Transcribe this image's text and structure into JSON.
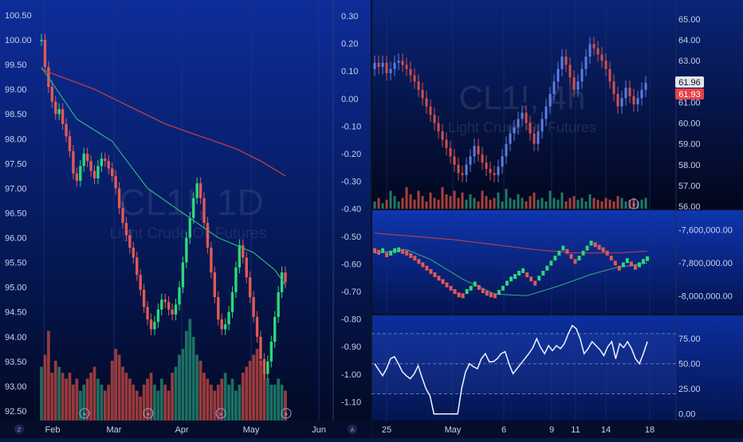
{
  "colors": {
    "up": "#2fd778",
    "down": "#e05a55",
    "ma_fast": "#2fb37a",
    "ma_slow": "#c8423e",
    "axis_text": "#c9d2ea",
    "price_badge_light": "#e3e6ee",
    "price_badge_red": "#e4424a",
    "bg_top": "#0b2a8a",
    "bg_bottom": "#000718"
  },
  "left_pane": {
    "watermark_symbol": "CL1!, 1D",
    "watermark_name": "Light Crude Oil Futures",
    "price_axis": [
      "100.50",
      "100.00",
      "99.50",
      "99.00",
      "98.50",
      "98.00",
      "97.50",
      "97.00",
      "96.50",
      "96.00",
      "95.50",
      "95.00",
      "94.50",
      "94.00",
      "93.50",
      "93.00",
      "92.50"
    ],
    "time_axis": [
      "Feb",
      "Mar",
      "Apr",
      "May",
      "Jun"
    ],
    "axis_corner_label": "Z"
  },
  "middle_axis": {
    "labels": [
      "0.30",
      "0.20",
      "0.10",
      "0.00",
      "-0.10",
      "-0.20",
      "-0.30",
      "-0.40",
      "-0.50",
      "-0.60",
      "-0.70",
      "-0.80",
      "-0.90",
      "-1.00",
      "-1.10"
    ],
    "corner_label": "A"
  },
  "right_top": {
    "watermark_symbol": "CL1!, 4h",
    "watermark_name": "Light Crude Oil Futures",
    "price_axis": [
      "65.00",
      "64.00",
      "63.00",
      "62.00",
      "61.00",
      "60.00",
      "59.00",
      "58.00",
      "57.00",
      "56.00"
    ],
    "badge_last": "61.96",
    "badge_current": "61.93"
  },
  "right_mid": {
    "price_axis": [
      "-7,600,000.00",
      "-7,800,000.00",
      "-8,000,000.00"
    ]
  },
  "right_bottom": {
    "price_axis": [
      "75.00",
      "50.00",
      "25.00",
      "0.00"
    ]
  },
  "right_time_axis": [
    "25",
    "May",
    "6",
    "9",
    "11",
    "14",
    "18"
  ],
  "chart_data": {
    "type": "candlestick",
    "symbol": "CL1!",
    "interval": "1D",
    "months": [
      "Feb",
      "Mar",
      "Apr",
      "May"
    ],
    "ylim": [
      92.4,
      100.6
    ],
    "close": [
      100.0,
      99.45,
      99.05,
      98.75,
      98.5,
      98.6,
      98.3,
      98.05,
      97.75,
      97.3,
      97.15,
      97.45,
      97.7,
      97.55,
      97.35,
      97.2,
      97.45,
      97.6,
      97.55,
      97.4,
      97.25,
      97.0,
      96.6,
      96.3,
      96.05,
      95.8,
      95.6,
      95.25,
      94.95,
      94.6,
      94.35,
      94.15,
      94.3,
      94.55,
      94.75,
      94.7,
      94.55,
      94.45,
      94.65,
      95.0,
      95.5,
      96.0,
      96.4,
      96.8,
      97.1,
      96.8,
      96.3,
      95.8,
      95.3,
      94.8,
      94.35,
      94.15,
      94.25,
      94.5,
      94.9,
      95.4,
      95.85,
      95.6,
      95.2,
      94.8,
      94.4,
      94.0,
      93.55,
      93.25,
      93.5,
      93.9,
      94.4,
      94.9,
      95.3,
      95.1
    ],
    "volume": [
      0.45,
      0.55,
      0.75,
      0.4,
      0.5,
      0.45,
      0.4,
      0.35,
      0.4,
      0.3,
      0.35,
      0.25,
      0.3,
      0.35,
      0.4,
      0.45,
      0.35,
      0.3,
      0.25,
      0.3,
      0.5,
      0.6,
      0.55,
      0.45,
      0.4,
      0.35,
      0.3,
      0.25,
      0.2,
      0.3,
      0.35,
      0.4,
      0.3,
      0.25,
      0.35,
      0.3,
      0.25,
      0.4,
      0.45,
      0.55,
      0.6,
      0.75,
      0.85,
      0.7,
      0.55,
      0.5,
      0.4,
      0.35,
      0.3,
      0.25,
      0.3,
      0.35,
      0.4,
      0.3,
      0.35,
      0.25,
      0.3,
      0.4,
      0.45,
      0.5,
      0.55,
      0.6,
      0.5,
      0.4,
      0.35,
      0.3,
      0.3,
      0.35,
      0.3,
      0.25
    ],
    "ma_fast": [
      [
        0,
        99.45
      ],
      [
        10,
        98.4
      ],
      [
        20,
        97.95
      ],
      [
        30,
        97.0
      ],
      [
        40,
        96.5
      ],
      [
        50,
        96.0
      ],
      [
        60,
        95.7
      ],
      [
        66,
        95.35
      ],
      [
        69,
        95.05
      ]
    ],
    "ma_slow": [
      [
        0,
        99.4
      ],
      [
        15,
        99.0
      ],
      [
        25,
        98.65
      ],
      [
        35,
        98.3
      ],
      [
        45,
        98.05
      ],
      [
        55,
        97.8
      ],
      [
        62,
        97.55
      ],
      [
        69,
        97.25
      ]
    ],
    "secondary": {
      "symbol": "CL1!",
      "interval": "4h",
      "ylim": [
        56.0,
        65.5
      ],
      "close": [
        62.9,
        62.7,
        62.9,
        62.4,
        62.6,
        62.9,
        63.0,
        62.8,
        62.6,
        62.3,
        62.0,
        61.6,
        61.2,
        60.8,
        60.4,
        60.0,
        59.6,
        59.2,
        58.8,
        58.4,
        58.0,
        57.6,
        57.5,
        58.0,
        58.4,
        58.9,
        58.5,
        58.1,
        57.8,
        57.6,
        57.5,
        57.9,
        58.4,
        59.0,
        59.5,
        59.8,
        60.2,
        60.5,
        60.0,
        59.5,
        59.0,
        59.6,
        60.2,
        60.8,
        61.4,
        62.0,
        62.6,
        63.2,
        62.8,
        62.2,
        61.6,
        62.0,
        62.6,
        63.2,
        63.8,
        63.6,
        63.3,
        63.0,
        62.6,
        62.0,
        61.4,
        60.8,
        61.2,
        61.7,
        61.3,
        60.9,
        61.2,
        61.6,
        61.93
      ],
      "volume": [
        0.2,
        0.3,
        0.15,
        0.25,
        0.5,
        0.35,
        0.2,
        0.3,
        0.6,
        0.4,
        0.25,
        0.5,
        0.35,
        0.2,
        0.45,
        0.3,
        0.25,
        0.6,
        0.4,
        0.35,
        0.5,
        0.3,
        0.45,
        0.25,
        0.4,
        0.3,
        0.2,
        0.5,
        0.35,
        0.25,
        0.3,
        0.45,
        0.2,
        0.55,
        0.3,
        0.25,
        0.4,
        0.3,
        0.2,
        0.35,
        0.45,
        0.25,
        0.3,
        0.2,
        0.5,
        0.3,
        0.25,
        0.45,
        0.2,
        0.3,
        0.35,
        0.25,
        0.3,
        0.2,
        0.4,
        0.3,
        0.25,
        0.2,
        0.3,
        0.25,
        0.2,
        0.35,
        0.3,
        0.2,
        0.25,
        0.3,
        0.2,
        0.25,
        0.3
      ]
    },
    "oscillator": {
      "ylim": [
        -8100000,
        -7500000
      ],
      "ma_slow": [
        [
          0,
          -7620000
        ],
        [
          10,
          -7640000
        ],
        [
          20,
          -7660000
        ],
        [
          30,
          -7690000
        ],
        [
          40,
          -7720000
        ],
        [
          50,
          -7740000
        ],
        [
          60,
          -7740000
        ],
        [
          68,
          -7730000
        ]
      ],
      "ma_fast": [
        [
          0,
          -7740000
        ],
        [
          8,
          -7720000
        ],
        [
          14,
          -7780000
        ],
        [
          22,
          -7900000
        ],
        [
          30,
          -7990000
        ],
        [
          38,
          -8000000
        ],
        [
          46,
          -7940000
        ],
        [
          54,
          -7870000
        ],
        [
          60,
          -7830000
        ],
        [
          68,
          -7800000
        ]
      ]
    },
    "rsi": {
      "ylim": [
        -5,
        95
      ],
      "levels": [
        80,
        50,
        20
      ],
      "values": [
        50,
        44,
        38,
        45,
        55,
        57,
        50,
        42,
        38,
        35,
        40,
        48,
        36,
        25,
        18,
        0,
        0,
        0,
        0,
        0,
        0,
        0,
        25,
        42,
        50,
        47,
        45,
        55,
        60,
        52,
        52,
        55,
        60,
        62,
        50,
        40,
        45,
        50,
        55,
        60,
        66,
        75,
        66,
        60,
        68,
        63,
        68,
        65,
        70,
        80,
        88,
        85,
        75,
        60,
        65,
        72,
        68,
        64,
        58,
        67,
        72,
        55,
        70,
        66,
        72,
        65,
        55,
        50,
        60,
        72
      ]
    }
  }
}
